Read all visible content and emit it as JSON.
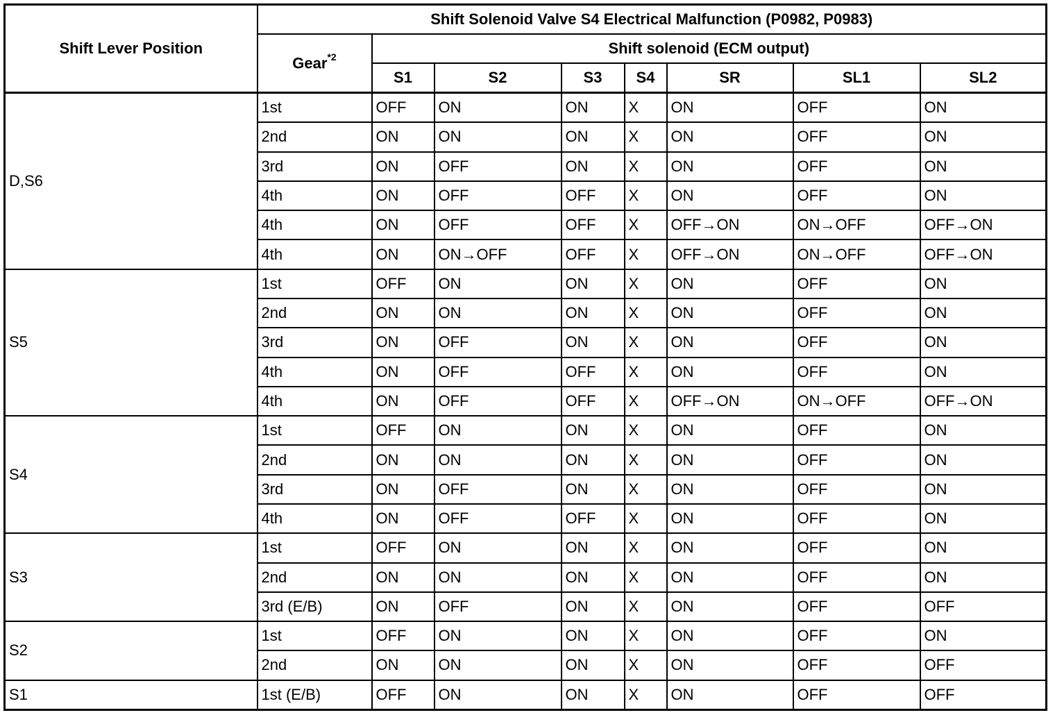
{
  "table": {
    "header": {
      "shift_lever_position": "Shift Lever Position",
      "title": "Shift Solenoid Valve S4 Electrical Malfunction (P0982, P0983)",
      "gear": "Gear",
      "gear_note": "*2",
      "shift_solenoid": "Shift solenoid (ECM output)",
      "solenoids": [
        "S1",
        "S2",
        "S3",
        "S4",
        "SR",
        "SL1",
        "SL2"
      ]
    },
    "groups": [
      {
        "position": "D,S6",
        "rows": [
          [
            "1st",
            "OFF",
            "ON",
            "ON",
            "X",
            "ON",
            "OFF",
            "ON"
          ],
          [
            "2nd",
            "ON",
            "ON",
            "ON",
            "X",
            "ON",
            "OFF",
            "ON"
          ],
          [
            "3rd",
            "ON",
            "OFF",
            "ON",
            "X",
            "ON",
            "OFF",
            "ON"
          ],
          [
            "4th",
            "ON",
            "OFF",
            "OFF",
            "X",
            "ON",
            "OFF",
            "ON"
          ],
          [
            "4th",
            "ON",
            "OFF",
            "OFF",
            "X",
            "OFF→ON",
            "ON→OFF",
            "OFF→ON"
          ],
          [
            "4th",
            "ON",
            "ON→OFF",
            "OFF",
            "X",
            "OFF→ON",
            "ON→OFF",
            "OFF→ON"
          ]
        ]
      },
      {
        "position": "S5",
        "rows": [
          [
            "1st",
            "OFF",
            "ON",
            "ON",
            "X",
            "ON",
            "OFF",
            "ON"
          ],
          [
            "2nd",
            "ON",
            "ON",
            "ON",
            "X",
            "ON",
            "OFF",
            "ON"
          ],
          [
            "3rd",
            "ON",
            "OFF",
            "ON",
            "X",
            "ON",
            "OFF",
            "ON"
          ],
          [
            "4th",
            "ON",
            "OFF",
            "OFF",
            "X",
            "ON",
            "OFF",
            "ON"
          ],
          [
            "4th",
            "ON",
            "OFF",
            "OFF",
            "X",
            "OFF→ON",
            "ON→OFF",
            "OFF→ON"
          ]
        ]
      },
      {
        "position": "S4",
        "rows": [
          [
            "1st",
            "OFF",
            "ON",
            "ON",
            "X",
            "ON",
            "OFF",
            "ON"
          ],
          [
            "2nd",
            "ON",
            "ON",
            "ON",
            "X",
            "ON",
            "OFF",
            "ON"
          ],
          [
            "3rd",
            "ON",
            "OFF",
            "ON",
            "X",
            "ON",
            "OFF",
            "ON"
          ],
          [
            "4th",
            "ON",
            "OFF",
            "OFF",
            "X",
            "ON",
            "OFF",
            "ON"
          ]
        ]
      },
      {
        "position": "S3",
        "rows": [
          [
            "1st",
            "OFF",
            "ON",
            "ON",
            "X",
            "ON",
            "OFF",
            "ON"
          ],
          [
            "2nd",
            "ON",
            "ON",
            "ON",
            "X",
            "ON",
            "OFF",
            "ON"
          ],
          [
            "3rd (E/B)",
            "ON",
            "OFF",
            "ON",
            "X",
            "ON",
            "OFF",
            "OFF"
          ]
        ]
      },
      {
        "position": "S2",
        "rows": [
          [
            "1st",
            "OFF",
            "ON",
            "ON",
            "X",
            "ON",
            "OFF",
            "ON"
          ],
          [
            "2nd",
            "ON",
            "ON",
            "ON",
            "X",
            "ON",
            "OFF",
            "OFF"
          ]
        ]
      },
      {
        "position": "S1",
        "rows": [
          [
            "1st (E/B)",
            "OFF",
            "ON",
            "ON",
            "X",
            "ON",
            "OFF",
            "OFF"
          ]
        ]
      }
    ]
  }
}
